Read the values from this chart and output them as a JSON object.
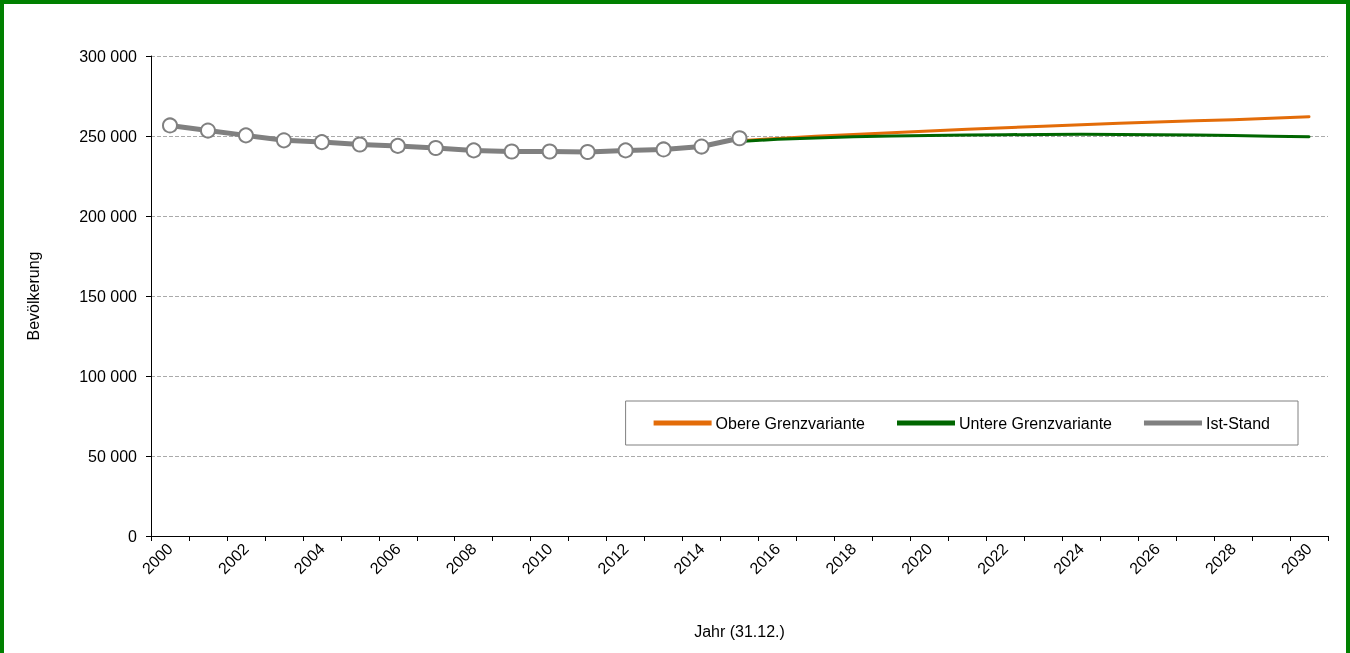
{
  "chart_data": {
    "type": "line",
    "xlabel": "Jahr (31.12.)",
    "ylabel": "Bevölkerung",
    "categories": [
      "2000",
      null,
      "2002",
      null,
      "2004",
      null,
      "2006",
      null,
      "2008",
      null,
      "2010",
      null,
      "2012",
      null,
      "2014",
      null,
      "2016",
      null,
      "2018",
      null,
      "2020",
      null,
      "2022",
      null,
      "2024",
      null,
      "2026",
      null,
      "2028",
      null,
      "2030"
    ],
    "series": [
      {
        "name": "Obere Grenzvariante",
        "color": "#e36c09",
        "marker": "none",
        "values": [
          null,
          null,
          null,
          null,
          null,
          null,
          null,
          null,
          null,
          null,
          null,
          null,
          null,
          null,
          null,
          247000,
          248500,
          249800,
          251000,
          252100,
          253200,
          254200,
          255200,
          256100,
          257000,
          257900,
          258700,
          259500,
          260200,
          261100,
          262000
        ]
      },
      {
        "name": "Untere Grenzvariante",
        "color": "#006600",
        "marker": "none",
        "values": [
          null,
          null,
          null,
          null,
          null,
          null,
          null,
          null,
          null,
          null,
          null,
          null,
          null,
          null,
          null,
          246500,
          248000,
          248800,
          249500,
          250000,
          250300,
          250600,
          250800,
          251000,
          251100,
          251000,
          250800,
          250600,
          250300,
          249900,
          249500
        ]
      },
      {
        "name": "Ist-Stand",
        "color": "#808080",
        "marker": "circle",
        "values": [
          256600,
          253400,
          250400,
          247300,
          246200,
          244700,
          243800,
          242500,
          241000,
          240300,
          240300,
          240000,
          241000,
          241600,
          243400,
          248600,
          null,
          null,
          null,
          null,
          null,
          null,
          null,
          null,
          null,
          null,
          null,
          null,
          null,
          null,
          null
        ]
      }
    ],
    "ylim": [
      0,
      300000
    ],
    "yticks": [
      0,
      {
        "value": 50000,
        "label": "50 000"
      },
      {
        "value": 100000,
        "label": "100 000"
      },
      {
        "value": 150000,
        "label": "150 000"
      },
      {
        "value": 200000,
        "label": "200 000"
      },
      {
        "value": 250000,
        "label": "250 000"
      },
      {
        "value": 300000,
        "label": "300 000"
      }
    ],
    "grid": "y",
    "legend": "bottom right",
    "line_style": "solid"
  }
}
